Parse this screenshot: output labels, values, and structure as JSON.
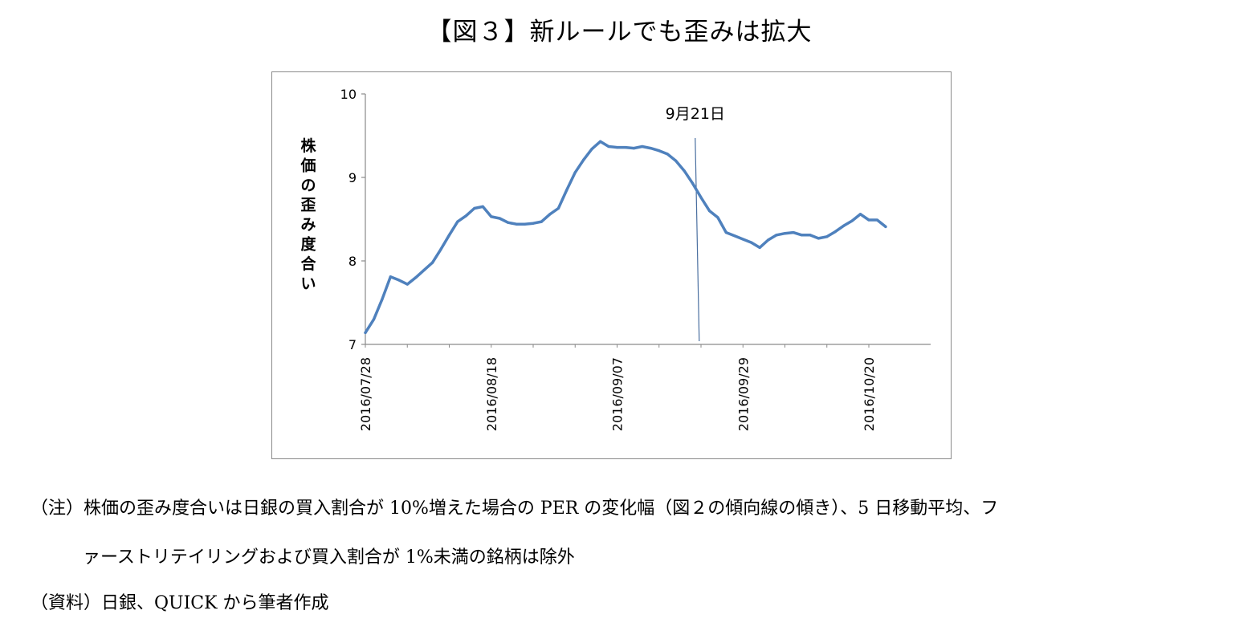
{
  "title": "【図３】新ルールでも歪みは拡大",
  "notes": {
    "line1": "（注）株価の歪み度合いは日銀の買入割合が 10%増えた場合の PER の変化幅（図２の傾向線の傾き）、5 日移動平均、フ",
    "line2": "ァーストリテイリングおよび買入割合が 1%未満の銘柄は除外",
    "source": "（資料）日銀、QUICK から筆者作成"
  },
  "colors": {
    "line": "#4f81bd",
    "marker": "#4f81bd",
    "axis": "#8a8a8a"
  },
  "chart_data": {
    "type": "line",
    "title": "",
    "ylabel": "株価の歪み度合い",
    "xlabel": "",
    "ylim": [
      7,
      10
    ],
    "yticks": [
      "7",
      "8",
      "9",
      "10"
    ],
    "xticks": [
      {
        "index": 0,
        "label": "2016/07/28"
      },
      {
        "index": 15,
        "label": "2016/08/18"
      },
      {
        "index": 30,
        "label": "2016/09/07"
      },
      {
        "index": 45,
        "label": "2016/09/29"
      },
      {
        "index": 60,
        "label": "2016/10/20"
      }
    ],
    "annotation": {
      "label": "9月21日",
      "index": 39.5
    },
    "series": [
      {
        "name": "株価の歪み度合い",
        "values": [
          7.14,
          7.3,
          7.54,
          7.81,
          7.77,
          7.72,
          7.8,
          7.89,
          7.98,
          8.14,
          8.31,
          8.47,
          8.54,
          8.63,
          8.65,
          8.53,
          8.51,
          8.46,
          8.44,
          8.44,
          8.45,
          8.47,
          8.56,
          8.63,
          8.85,
          9.06,
          9.21,
          9.34,
          9.43,
          9.37,
          9.36,
          9.36,
          9.35,
          9.37,
          9.35,
          9.32,
          9.28,
          9.2,
          9.08,
          8.93,
          8.76,
          8.6,
          8.52,
          8.34,
          8.3,
          8.26,
          8.22,
          8.16,
          8.25,
          8.31,
          8.33,
          8.34,
          8.31,
          8.31,
          8.27,
          8.29,
          8.35,
          8.42,
          8.48,
          8.56,
          8.49,
          8.49,
          8.41
        ]
      }
    ]
  }
}
